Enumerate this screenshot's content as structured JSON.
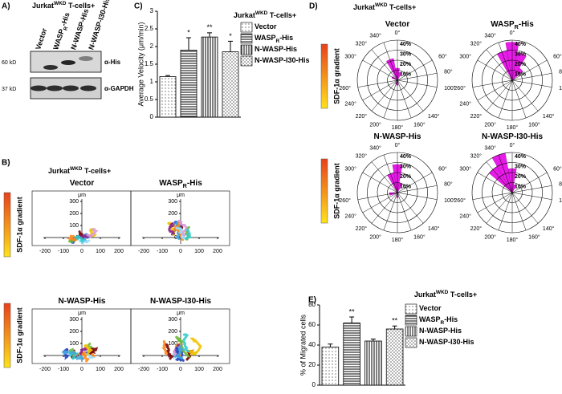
{
  "panel_a": {
    "label": "A)",
    "title": [
      "Jurkat",
      "WKD",
      " T-cells+"
    ],
    "lanes": [
      [
        "Vector"
      ],
      [
        "WASP",
        "R",
        "-His"
      ],
      [
        "N-WASP-His"
      ],
      [
        "N-WASP-I30-His"
      ]
    ],
    "rows": [
      {
        "size": "60 kD",
        "antibody": "α-His"
      },
      {
        "size": "37 kD",
        "antibody": "α-GAPDH"
      }
    ]
  },
  "panel_b": {
    "label": "B)",
    "title": [
      "Jurkat",
      "WKD",
      " T-cells+"
    ],
    "gradient_label": "SDF-1α gradient",
    "axis_unit": "μm",
    "plots": [
      {
        "title": [
          "Vector"
        ]
      },
      {
        "title": [
          "WASP",
          "R",
          "-His"
        ]
      },
      {
        "title": [
          "N-WASP-His"
        ]
      },
      {
        "title": [
          "N-WASP-I30-His"
        ]
      }
    ],
    "xticks": [
      -200,
      -100,
      0,
      100,
      200
    ],
    "yticks": [
      0,
      100,
      200,
      300
    ]
  },
  "panel_d": {
    "label": "D)",
    "title": [
      "Jurkat",
      "WKD",
      " T-cells+"
    ],
    "gradient_label": "SDF-1α gradient",
    "rlim": [
      0,
      40
    ],
    "rticks": [
      {
        "value": 10,
        "label": "10%"
      },
      {
        "value": 20,
        "label": "20%"
      },
      {
        "value": 30,
        "label": "30%"
      },
      {
        "value": 40,
        "label": "40%"
      }
    ],
    "aticks": [
      {
        "value": 0,
        "label": "0°"
      },
      {
        "value": 60,
        "label": "60°"
      },
      {
        "value": 80,
        "label": "80°"
      },
      {
        "value": 100,
        "label": "100°"
      },
      {
        "value": 140,
        "label": "140°"
      },
      {
        "value": 160,
        "label": "160°"
      },
      {
        "value": 180,
        "label": "180°"
      },
      {
        "value": 200,
        "label": "200°"
      },
      {
        "value": 220,
        "label": "220°"
      },
      {
        "value": 240,
        "label": "240°"
      },
      {
        "value": 260,
        "label": "260°"
      },
      {
        "value": 300,
        "label": "300°"
      },
      {
        "value": 320,
        "label": "320°"
      },
      {
        "value": 340,
        "label": "340°"
      }
    ],
    "color": "#e81ce8",
    "plots": [
      {
        "title": [
          "Vector"
        ],
        "angles": [
          340,
          0,
          20,
          180,
          200,
          300
        ],
        "values": [
          22,
          12,
          8,
          5,
          4,
          6
        ]
      },
      {
        "title": [
          "WASP",
          "R",
          "-His"
        ],
        "angles": [
          340,
          0,
          20,
          40
        ],
        "values": [
          30,
          38,
          28,
          14
        ]
      },
      {
        "title": [
          "N-WASP-His"
        ],
        "angles": [
          340,
          0,
          20,
          180,
          260
        ],
        "values": [
          20,
          28,
          10,
          5,
          8
        ]
      },
      {
        "title": [
          "N-WASP-I30-His"
        ],
        "angles": [
          320,
          340,
          0,
          20
        ],
        "values": [
          30,
          40,
          24,
          8
        ]
      }
    ]
  },
  "chart_data": [
    {
      "type": "bar",
      "label": "C)",
      "title": [
        "Jurkat",
        "WKD",
        " T-cells+"
      ],
      "ylabel": "Average Velocity (μm/min)",
      "ylim": [
        0,
        3
      ],
      "yticks": [
        0,
        0.5,
        1,
        1.5,
        2,
        2.5,
        3
      ],
      "series": [
        {
          "name": [
            "Vector"
          ],
          "values": [
            1.15
          ],
          "errors": [
            0.03
          ],
          "pattern": "dots"
        },
        {
          "name": [
            "WASP",
            "R",
            "-His"
          ],
          "values": [
            1.9
          ],
          "errors": [
            0.35
          ],
          "pattern": "hlines",
          "annotation": "*"
        },
        {
          "name": [
            "N-WASP-His"
          ],
          "values": [
            2.27
          ],
          "errors": [
            0.12
          ],
          "pattern": "vlines",
          "annotation": "**"
        },
        {
          "name": [
            "N-WASP-I30-His"
          ],
          "values": [
            1.85
          ],
          "errors": [
            0.3
          ],
          "pattern": "grid",
          "annotation": "*"
        }
      ]
    },
    {
      "type": "bar",
      "label": "E)",
      "title": [
        "Jurkat",
        "WKD",
        " T-cells+"
      ],
      "ylabel": "% of Migrated cells",
      "ylim": [
        0,
        80
      ],
      "yticks": [
        0,
        20,
        40,
        60,
        80
      ],
      "series": [
        {
          "name": [
            "Vector"
          ],
          "values": [
            38
          ],
          "errors": [
            3
          ],
          "pattern": "dots"
        },
        {
          "name": [
            "WASP",
            "R",
            "-His"
          ],
          "values": [
            62
          ],
          "errors": [
            6
          ],
          "pattern": "hlines",
          "annotation": "**"
        },
        {
          "name": [
            "N-WASP-His"
          ],
          "values": [
            44
          ],
          "errors": [
            2
          ],
          "pattern": "vlines"
        },
        {
          "name": [
            "N-WASP-I30-His"
          ],
          "values": [
            56
          ],
          "errors": [
            3
          ],
          "pattern": "grid",
          "annotation": "**"
        }
      ]
    }
  ]
}
